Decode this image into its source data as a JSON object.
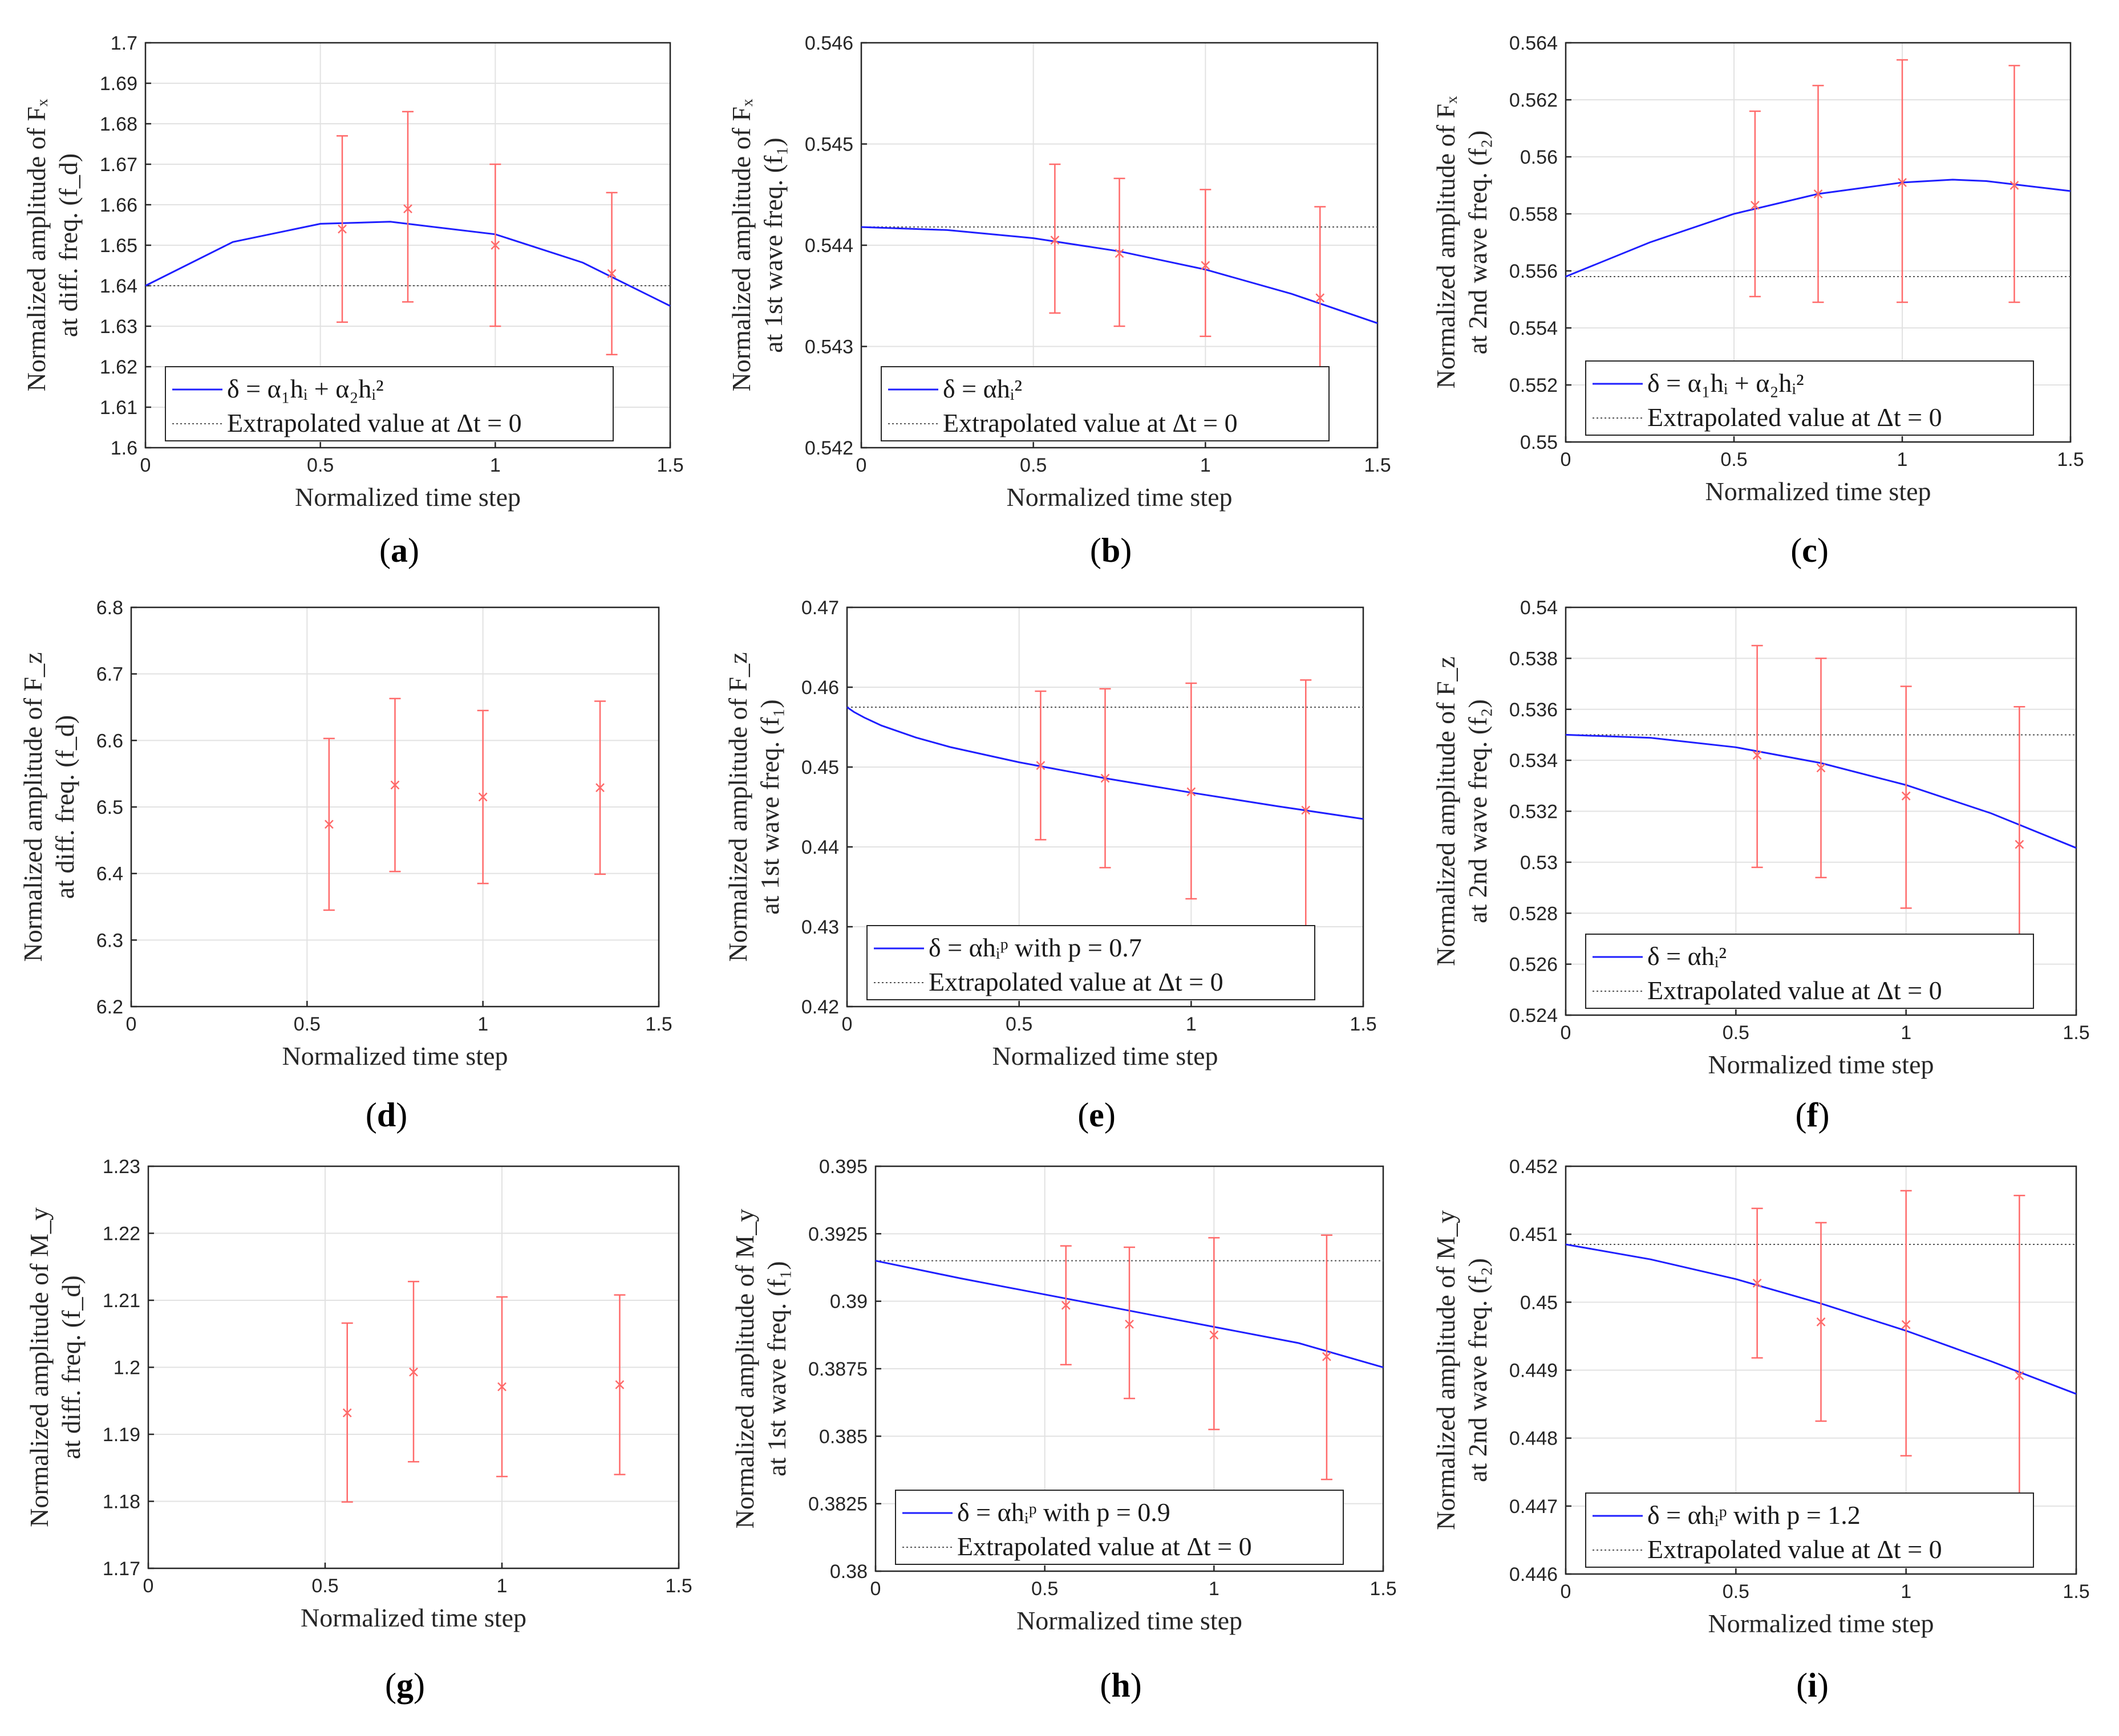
{
  "colors": {
    "fit": "#1f1fff",
    "err": "#ff6a6a",
    "extrap": "#555555",
    "grid": "#e2e2e2"
  },
  "chart_data": [
    {
      "type": "scatter",
      "panel": "(a)",
      "letter": "a",
      "ylabel_lines": [
        "Normalized amplitude of Fₓ",
        "at diff. freq. (f_d)"
      ],
      "xlabel": "Normalized time step",
      "xlim": [
        0,
        1.5
      ],
      "ylim": [
        1.6,
        1.7
      ],
      "xticks": [
        0,
        0.5,
        1,
        1.5
      ],
      "xtick_labels": [
        "0",
        "0.5",
        "1",
        "1.5"
      ],
      "yticks": [
        1.6,
        1.61,
        1.62,
        1.63,
        1.64,
        1.65,
        1.66,
        1.67,
        1.68,
        1.69,
        1.7
      ],
      "ytick_labels": [
        "1.6",
        "1.61",
        "1.62",
        "1.63",
        "1.64",
        "1.65",
        "1.66",
        "1.67",
        "1.68",
        "1.69",
        "1.7"
      ],
      "points": [
        {
          "x": 0.5625,
          "y": 1.654,
          "lo": 1.631,
          "hi": 1.677
        },
        {
          "x": 0.75,
          "y": 1.659,
          "lo": 1.636,
          "hi": 1.683
        },
        {
          "x": 1.0,
          "y": 1.65,
          "lo": 1.63,
          "hi": 1.67
        },
        {
          "x": 1.333,
          "y": 1.643,
          "lo": 1.623,
          "hi": 1.663
        }
      ],
      "fit_curve": {
        "x": [
          0,
          0.25,
          0.5,
          0.7,
          1.0,
          1.25,
          1.5
        ],
        "y": [
          1.64,
          1.6508,
          1.6553,
          1.6558,
          1.6527,
          1.6457,
          1.635
        ]
      },
      "extrapolated": 1.64,
      "legend": {
        "fit": "δ = α₁hᵢ + α₂hᵢ²",
        "extrap": "Extrapolated value at Δt = 0"
      }
    },
    {
      "type": "scatter",
      "panel": "(b)",
      "letter": "b",
      "ylabel_lines": [
        "Normalized amplitude of Fₓ",
        "at 1st wave freq. (f₁)"
      ],
      "xlabel": "Normalized time step",
      "xlim": [
        0,
        1.5
      ],
      "ylim": [
        0.542,
        0.546
      ],
      "xticks": [
        0,
        0.5,
        1,
        1.5
      ],
      "xtick_labels": [
        "0",
        "0.5",
        "1",
        "1.5"
      ],
      "yticks": [
        0.542,
        0.543,
        0.544,
        0.545,
        0.546
      ],
      "ytick_labels": [
        "0.542",
        "0.543",
        "0.544",
        "0.545",
        "0.546"
      ],
      "points": [
        {
          "x": 0.5625,
          "y": 0.54405,
          "lo": 0.54333,
          "hi": 0.5448
        },
        {
          "x": 0.75,
          "y": 0.54392,
          "lo": 0.5432,
          "hi": 0.54466
        },
        {
          "x": 1.0,
          "y": 0.5438,
          "lo": 0.5431,
          "hi": 0.54455
        },
        {
          "x": 1.333,
          "y": 0.54348,
          "lo": 0.54258,
          "hi": 0.54438
        }
      ],
      "fit_curve": {
        "x": [
          0,
          0.25,
          0.5,
          0.75,
          1.0,
          1.25,
          1.5
        ],
        "y": [
          0.54418,
          0.54415,
          0.54407,
          0.54394,
          0.54376,
          0.54352,
          0.54323
        ]
      },
      "extrapolated": 0.54418,
      "legend": {
        "fit": "δ = αhᵢ²",
        "extrap": "Extrapolated value at Δt = 0"
      }
    },
    {
      "type": "scatter",
      "panel": "(c)",
      "letter": "c",
      "ylabel_lines": [
        "Normalized amplitude of Fₓ",
        "at 2nd wave freq. (f₂)"
      ],
      "xlabel": "Normalized time step",
      "xlim": [
        0,
        1.5
      ],
      "ylim": [
        0.55,
        0.564
      ],
      "xticks": [
        0,
        0.5,
        1,
        1.5
      ],
      "xtick_labels": [
        "0",
        "0.5",
        "1",
        "1.5"
      ],
      "yticks": [
        0.55,
        0.552,
        0.554,
        0.556,
        0.558,
        0.56,
        0.562,
        0.564
      ],
      "ytick_labels": [
        "0.55",
        "0.552",
        "0.554",
        "0.556",
        "0.558",
        "0.56",
        "0.562",
        "0.564"
      ],
      "points": [
        {
          "x": 0.5625,
          "y": 0.5583,
          "lo": 0.5551,
          "hi": 0.5616
        },
        {
          "x": 0.75,
          "y": 0.5587,
          "lo": 0.5549,
          "hi": 0.5625
        },
        {
          "x": 1.0,
          "y": 0.5591,
          "lo": 0.5549,
          "hi": 0.5634
        },
        {
          "x": 1.333,
          "y": 0.559,
          "lo": 0.5549,
          "hi": 0.5632
        }
      ],
      "fit_curve": {
        "x": [
          0,
          0.25,
          0.5,
          0.75,
          1.0,
          1.15,
          1.25,
          1.5
        ],
        "y": [
          0.5558,
          0.557,
          0.558,
          0.5587,
          0.5591,
          0.5592,
          0.55915,
          0.5588
        ]
      },
      "extrapolated": 0.5558,
      "legend": {
        "fit": "δ = α₁hᵢ + α₂hᵢ²",
        "extrap": "Extrapolated value at Δt = 0"
      }
    },
    {
      "type": "scatter",
      "panel": "(d)",
      "letter": "d",
      "ylabel_lines": [
        "Normalized amplitude of F_z",
        "at diff. freq. (f_d)"
      ],
      "xlabel": "Normalized time step",
      "xlim": [
        0,
        1.5
      ],
      "ylim": [
        6.2,
        6.8
      ],
      "xticks": [
        0,
        0.5,
        1,
        1.5
      ],
      "xtick_labels": [
        "0",
        "0.5",
        "1",
        "1.5"
      ],
      "yticks": [
        6.2,
        6.3,
        6.4,
        6.5,
        6.6,
        6.7,
        6.8
      ],
      "ytick_labels": [
        "6.2",
        "6.3",
        "6.4",
        "6.5",
        "6.6",
        "6.7",
        "6.8"
      ],
      "points": [
        {
          "x": 0.5625,
          "y": 6.474,
          "lo": 6.345,
          "hi": 6.603
        },
        {
          "x": 0.75,
          "y": 6.533,
          "lo": 6.403,
          "hi": 6.663
        },
        {
          "x": 1.0,
          "y": 6.515,
          "lo": 6.385,
          "hi": 6.645
        },
        {
          "x": 1.333,
          "y": 6.529,
          "lo": 6.399,
          "hi": 6.659
        }
      ],
      "fit_curve": null,
      "extrapolated": null,
      "legend": null
    },
    {
      "type": "scatter",
      "panel": "(e)",
      "letter": "e",
      "ylabel_lines": [
        "Normalized amplitude of F_z",
        "at 1st wave freq. (f₁)"
      ],
      "xlabel": "Normalized time step",
      "xlim": [
        0,
        1.5
      ],
      "ylim": [
        0.42,
        0.47
      ],
      "xticks": [
        0,
        0.5,
        1,
        1.5
      ],
      "xtick_labels": [
        "0",
        "0.5",
        "1",
        "1.5"
      ],
      "yticks": [
        0.42,
        0.43,
        0.44,
        0.45,
        0.46,
        0.47
      ],
      "ytick_labels": [
        "0.42",
        "0.43",
        "0.44",
        "0.45",
        "0.46",
        "0.47"
      ],
      "points": [
        {
          "x": 0.5625,
          "y": 0.4502,
          "lo": 0.4409,
          "hi": 0.4595
        },
        {
          "x": 0.75,
          "y": 0.4486,
          "lo": 0.4374,
          "hi": 0.4598
        },
        {
          "x": 1.0,
          "y": 0.4469,
          "lo": 0.4335,
          "hi": 0.4605
        },
        {
          "x": 1.333,
          "y": 0.4446,
          "lo": 0.4282,
          "hi": 0.4609
        }
      ],
      "fit_curve": {
        "x": [
          0,
          0.02,
          0.05,
          0.1,
          0.2,
          0.3,
          0.5,
          0.75,
          1.0,
          1.25,
          1.5
        ],
        "y": [
          0.4575,
          0.4569,
          0.4562,
          0.4552,
          0.4537,
          0.4525,
          0.4506,
          0.4486,
          0.4468,
          0.4451,
          0.4435
        ]
      },
      "extrapolated": 0.4575,
      "legend": {
        "fit": "δ = αhᵢᵖ with p = 0.7",
        "extrap": "Extrapolated value at Δt = 0"
      }
    },
    {
      "type": "scatter",
      "panel": "(f)",
      "letter": "f",
      "ylabel_lines": [
        "Normalized amplitude of F_z",
        "at 2nd wave freq. (f₂)"
      ],
      "xlabel": "Normalized time step",
      "xlim": [
        0,
        1.5
      ],
      "ylim": [
        0.524,
        0.54
      ],
      "xticks": [
        0,
        0.5,
        1,
        1.5
      ],
      "xtick_labels": [
        "0",
        "0.5",
        "1",
        "1.5"
      ],
      "yticks": [
        0.524,
        0.526,
        0.528,
        0.53,
        0.532,
        0.534,
        0.536,
        0.538,
        0.54
      ],
      "ytick_labels": [
        "0.524",
        "0.526",
        "0.528",
        "0.53",
        "0.532",
        "0.534",
        "0.536",
        "0.538",
        "0.54"
      ],
      "points": [
        {
          "x": 0.5625,
          "y": 0.5342,
          "lo": 0.5298,
          "hi": 0.5385
        },
        {
          "x": 0.75,
          "y": 0.5337,
          "lo": 0.5294,
          "hi": 0.538
        },
        {
          "x": 1.0,
          "y": 0.5326,
          "lo": 0.5282,
          "hi": 0.5369
        },
        {
          "x": 1.333,
          "y": 0.5307,
          "lo": 0.5253,
          "hi": 0.5361
        }
      ],
      "fit_curve": {
        "x": [
          0,
          0.25,
          0.5,
          0.75,
          1.0,
          1.25,
          1.5
        ],
        "y": [
          0.535,
          0.53488,
          0.53451,
          0.53389,
          0.53303,
          0.53192,
          0.53056
        ]
      },
      "extrapolated": 0.535,
      "legend": {
        "fit": "δ = αhᵢ²",
        "extrap": "Extrapolated value at Δt = 0"
      }
    },
    {
      "type": "scatter",
      "panel": "(g)",
      "letter": "g",
      "ylabel_lines": [
        "Normalized amplitude of M_y",
        "at diff. freq. (f_d)"
      ],
      "xlabel": "Normalized time step",
      "xlim": [
        0,
        1.5
      ],
      "ylim": [
        1.17,
        1.23
      ],
      "xticks": [
        0,
        0.5,
        1,
        1.5
      ],
      "xtick_labels": [
        "0",
        "0.5",
        "1",
        "1.5"
      ],
      "yticks": [
        1.17,
        1.18,
        1.19,
        1.2,
        1.21,
        1.22,
        1.23
      ],
      "ytick_labels": [
        "1.17",
        "1.18",
        "1.19",
        "1.2",
        "1.21",
        "1.22",
        "1.23"
      ],
      "points": [
        {
          "x": 0.5625,
          "y": 1.1932,
          "lo": 1.1799,
          "hi": 1.2066
        },
        {
          "x": 0.75,
          "y": 1.1993,
          "lo": 1.1859,
          "hi": 1.2128
        },
        {
          "x": 1.0,
          "y": 1.1971,
          "lo": 1.1837,
          "hi": 1.2105
        },
        {
          "x": 1.333,
          "y": 1.1974,
          "lo": 1.184,
          "hi": 1.2108
        }
      ],
      "fit_curve": null,
      "extrapolated": null,
      "legend": null
    },
    {
      "type": "scatter",
      "panel": "(h)",
      "letter": "h",
      "ylabel_lines": [
        "Normalized amplitude of M_y",
        "at 1st wave freq. (f₁)"
      ],
      "xlabel": "Normalized time step",
      "xlim": [
        0,
        1.5
      ],
      "ylim": [
        0.38,
        0.395
      ],
      "xticks": [
        0,
        0.5,
        1,
        1.5
      ],
      "xtick_labels": [
        "0",
        "0.5",
        "1",
        "1.5"
      ],
      "yticks": [
        0.38,
        0.3825,
        0.385,
        0.3875,
        0.39,
        0.3925,
        0.395
      ],
      "ytick_labels": [
        "0.38",
        "0.3825",
        "0.385",
        "0.3875",
        "0.39",
        "0.3925",
        "0.395"
      ],
      "points": [
        {
          "x": 0.5625,
          "y": 0.38985,
          "lo": 0.38765,
          "hi": 0.39205
        },
        {
          "x": 0.75,
          "y": 0.38915,
          "lo": 0.3864,
          "hi": 0.392
        },
        {
          "x": 1.0,
          "y": 0.38875,
          "lo": 0.38525,
          "hi": 0.39235
        },
        {
          "x": 1.333,
          "y": 0.38795,
          "lo": 0.3834,
          "hi": 0.39245
        }
      ],
      "fit_curve": {
        "x": [
          0,
          0.25,
          0.5,
          0.75,
          1.0,
          1.25,
          1.5
        ],
        "y": [
          0.3915,
          0.39085,
          0.39025,
          0.38965,
          0.38905,
          0.38845,
          0.38755
        ]
      },
      "extrapolated": 0.3915,
      "legend": {
        "fit": "δ = αhᵢᵖ with p = 0.9",
        "extrap": "Extrapolated value at Δt = 0"
      }
    },
    {
      "type": "scatter",
      "panel": "(i)",
      "letter": "i",
      "ylabel_lines": [
        "Normalized amplitude of M_y",
        "at 2nd wave freq. (f₂)"
      ],
      "xlabel": "Normalized time step",
      "xlim": [
        0,
        1.5
      ],
      "ylim": [
        0.446,
        0.452
      ],
      "xticks": [
        0,
        0.5,
        1,
        1.5
      ],
      "xtick_labels": [
        "0",
        "0.5",
        "1",
        "1.5"
      ],
      "yticks": [
        0.446,
        0.447,
        0.448,
        0.449,
        0.45,
        0.451,
        0.452
      ],
      "ytick_labels": [
        "0.446",
        "0.447",
        "0.448",
        "0.449",
        "0.45",
        "0.451",
        "0.452"
      ],
      "points": [
        {
          "x": 0.5625,
          "y": 0.45028,
          "lo": 0.44918,
          "hi": 0.45138
        },
        {
          "x": 0.75,
          "y": 0.44971,
          "lo": 0.44825,
          "hi": 0.45117
        },
        {
          "x": 1.0,
          "y": 0.44967,
          "lo": 0.44774,
          "hi": 0.45164
        },
        {
          "x": 1.333,
          "y": 0.44892,
          "lo": 0.44621,
          "hi": 0.45157
        }
      ],
      "fit_curve": {
        "x": [
          0,
          0.25,
          0.5,
          0.75,
          1.0,
          1.25,
          1.5
        ],
        "y": [
          0.45085,
          0.45063,
          0.45034,
          0.44998,
          0.44958,
          0.44913,
          0.44865
        ]
      },
      "extrapolated": 0.45085,
      "legend": {
        "fit": "δ = αhᵢᵖ with p = 1.2",
        "extrap": "Extrapolated value at Δt = 0"
      }
    }
  ]
}
